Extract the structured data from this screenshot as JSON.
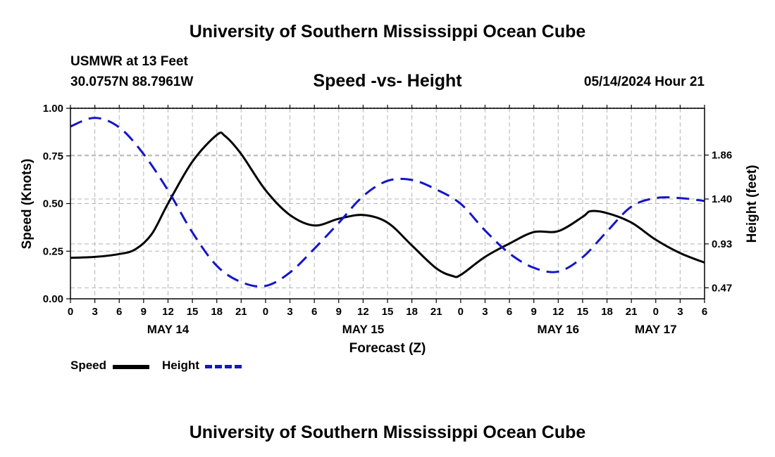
{
  "header": {
    "title_top": "University of Southern Mississippi Ocean Cube",
    "title_bottom": "University of Southern Mississippi Ocean Cube",
    "station": "USMWR at 13 Feet",
    "location": "30.0757N  88.7961W",
    "date": "05/14/2024 Hour 21"
  },
  "legend": {
    "speed_label": "Speed",
    "height_label": "Height"
  },
  "colors": {
    "speed": "#000000",
    "height": "#1515c8",
    "grid": "#b4b4b4"
  },
  "chart_data": {
    "type": "line",
    "title": "Speed -vs- Height",
    "xlabel": "Forecast (Z)",
    "ylabel": "Speed (Knots)",
    "y2label": "Height (feet)",
    "x_ticks": [
      "0",
      "3",
      "6",
      "9",
      "12",
      "15",
      "18",
      "21",
      "0",
      "3",
      "6",
      "9",
      "12",
      "15",
      "18",
      "21",
      "0",
      "3",
      "6",
      "9",
      "12",
      "15",
      "18",
      "21",
      "0",
      "3",
      "6"
    ],
    "x_range_hours": [
      0,
      78
    ],
    "day_labels": [
      {
        "label": "MAY 14",
        "hour": 12
      },
      {
        "label": "MAY 15",
        "hour": 36
      },
      {
        "label": "MAY 16",
        "hour": 60
      },
      {
        "label": "MAY 17",
        "hour": 72
      }
    ],
    "ylim": [
      0,
      1.0
    ],
    "y_ticks": [
      "0.00",
      "0.25",
      "0.50",
      "0.75",
      "1.00"
    ],
    "y2lim": [
      0.355,
      2.35
    ],
    "y2_ticks": [
      "0.47",
      "0.93",
      "1.40",
      "1.86"
    ],
    "series": [
      {
        "name": "Speed",
        "axis": "left",
        "style": "solid",
        "x": [
          0,
          3,
          6,
          8,
          10,
          12,
          15,
          18,
          19,
          21,
          24,
          27,
          30,
          33,
          36,
          39,
          42,
          45,
          47,
          48,
          51,
          54,
          57,
          60,
          63,
          64,
          66,
          69,
          72,
          75,
          78
        ],
        "values": [
          0.215,
          0.22,
          0.235,
          0.26,
          0.34,
          0.5,
          0.72,
          0.86,
          0.855,
          0.76,
          0.57,
          0.44,
          0.385,
          0.42,
          0.44,
          0.4,
          0.28,
          0.16,
          0.12,
          0.125,
          0.22,
          0.29,
          0.35,
          0.355,
          0.43,
          0.46,
          0.45,
          0.4,
          0.31,
          0.24,
          0.19
        ]
      },
      {
        "name": "Height",
        "axis": "right",
        "style": "dashed",
        "x": [
          0,
          3,
          6,
          9,
          12,
          15,
          18,
          21,
          24,
          27,
          30,
          33,
          36,
          39,
          42,
          45,
          48,
          51,
          54,
          57,
          60,
          63,
          66,
          69,
          72,
          75,
          78
        ],
        "values": [
          2.16,
          2.25,
          2.15,
          1.87,
          1.49,
          1.05,
          0.7,
          0.53,
          0.49,
          0.63,
          0.88,
          1.15,
          1.43,
          1.59,
          1.6,
          1.5,
          1.35,
          1.07,
          0.83,
          0.68,
          0.64,
          0.79,
          1.06,
          1.32,
          1.41,
          1.41,
          1.38
        ]
      }
    ]
  }
}
